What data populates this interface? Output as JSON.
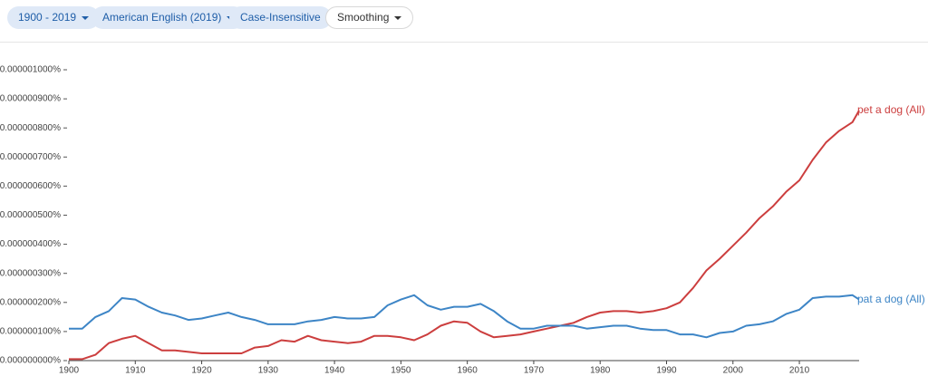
{
  "toolbar": {
    "buttons": [
      "1900 - 2019",
      "American English (2019)",
      "Case-Insensitive",
      "Smoothing"
    ]
  },
  "chart_data": {
    "type": "line",
    "x": [
      1900,
      1902,
      1904,
      1906,
      1908,
      1910,
      1912,
      1914,
      1916,
      1918,
      1920,
      1922,
      1924,
      1926,
      1928,
      1930,
      1932,
      1934,
      1936,
      1938,
      1940,
      1942,
      1944,
      1946,
      1948,
      1950,
      1952,
      1954,
      1956,
      1958,
      1960,
      1962,
      1964,
      1966,
      1968,
      1970,
      1972,
      1974,
      1976,
      1978,
      1980,
      1982,
      1984,
      1986,
      1988,
      1990,
      1992,
      1994,
      1996,
      1998,
      2000,
      2002,
      2004,
      2006,
      2008,
      2010,
      2012,
      2014,
      2016,
      2018,
      2019
    ],
    "series": [
      {
        "name": "pet a dog (All)",
        "color": "#cc3e3e",
        "values": [
          5e-09,
          5e-09,
          2e-08,
          6e-08,
          7.5e-08,
          8.5e-08,
          6e-08,
          3.5e-08,
          3.5e-08,
          3e-08,
          2.5e-08,
          2.5e-08,
          2.5e-08,
          2.5e-08,
          4.5e-08,
          5e-08,
          7e-08,
          6.5e-08,
          8.5e-08,
          7e-08,
          6.5e-08,
          6e-08,
          6.5e-08,
          8.5e-08,
          8.5e-08,
          8e-08,
          7e-08,
          9e-08,
          1.2e-07,
          1.35e-07,
          1.3e-07,
          1e-07,
          8e-08,
          8.5e-08,
          9e-08,
          1e-07,
          1.1e-07,
          1.2e-07,
          1.3e-07,
          1.5e-07,
          1.65e-07,
          1.7e-07,
          1.7e-07,
          1.65e-07,
          1.7e-07,
          1.8e-07,
          2e-07,
          2.5e-07,
          3.1e-07,
          3.5e-07,
          3.95e-07,
          4.4e-07,
          4.9e-07,
          5.3e-07,
          5.8e-07,
          6.2e-07,
          6.9e-07,
          7.5e-07,
          7.9e-07,
          8.2e-07,
          8.6e-07
        ]
      },
      {
        "name": "pat a dog (All)",
        "color": "#3d85c6",
        "values": [
          1.1e-07,
          1.1e-07,
          1.5e-07,
          1.7e-07,
          2.15e-07,
          2.1e-07,
          1.85e-07,
          1.65e-07,
          1.55e-07,
          1.4e-07,
          1.45e-07,
          1.55e-07,
          1.65e-07,
          1.5e-07,
          1.4e-07,
          1.25e-07,
          1.25e-07,
          1.25e-07,
          1.35e-07,
          1.4e-07,
          1.5e-07,
          1.45e-07,
          1.45e-07,
          1.5e-07,
          1.9e-07,
          2.1e-07,
          2.25e-07,
          1.9e-07,
          1.75e-07,
          1.85e-07,
          1.85e-07,
          1.95e-07,
          1.7e-07,
          1.35e-07,
          1.1e-07,
          1.1e-07,
          1.2e-07,
          1.2e-07,
          1.2e-07,
          1.1e-07,
          1.15e-07,
          1.2e-07,
          1.2e-07,
          1.1e-07,
          1.05e-07,
          1.05e-07,
          9e-08,
          9e-08,
          8e-08,
          9.5e-08,
          1e-07,
          1.2e-07,
          1.25e-07,
          1.35e-07,
          1.6e-07,
          1.75e-07,
          2.15e-07,
          2.2e-07,
          2.2e-07,
          2.25e-07,
          2.1e-07
        ]
      }
    ],
    "xlim": [
      1900,
      2019
    ],
    "xticks": [
      1900,
      1910,
      1920,
      1930,
      1940,
      1950,
      1960,
      1970,
      1980,
      1990,
      2000,
      2010
    ],
    "ylim": [
      0,
      1e-06
    ],
    "yticks": [
      {
        "value": 0,
        "label": "0.000000000%"
      },
      {
        "value": 1e-07,
        "label": "0.000000100%"
      },
      {
        "value": 2e-07,
        "label": "0.000000200%"
      },
      {
        "value": 3e-07,
        "label": "0.000000300%"
      },
      {
        "value": 4e-07,
        "label": "0.000000400%"
      },
      {
        "value": 5e-07,
        "label": "0.000000500%"
      },
      {
        "value": 6e-07,
        "label": "0.000000600%"
      },
      {
        "value": 7e-07,
        "label": "0.000000700%"
      },
      {
        "value": 8e-07,
        "label": "0.000000800%"
      },
      {
        "value": 9e-07,
        "label": "0.000000900%"
      },
      {
        "value": 1e-06,
        "label": "0.000001000%"
      }
    ]
  }
}
